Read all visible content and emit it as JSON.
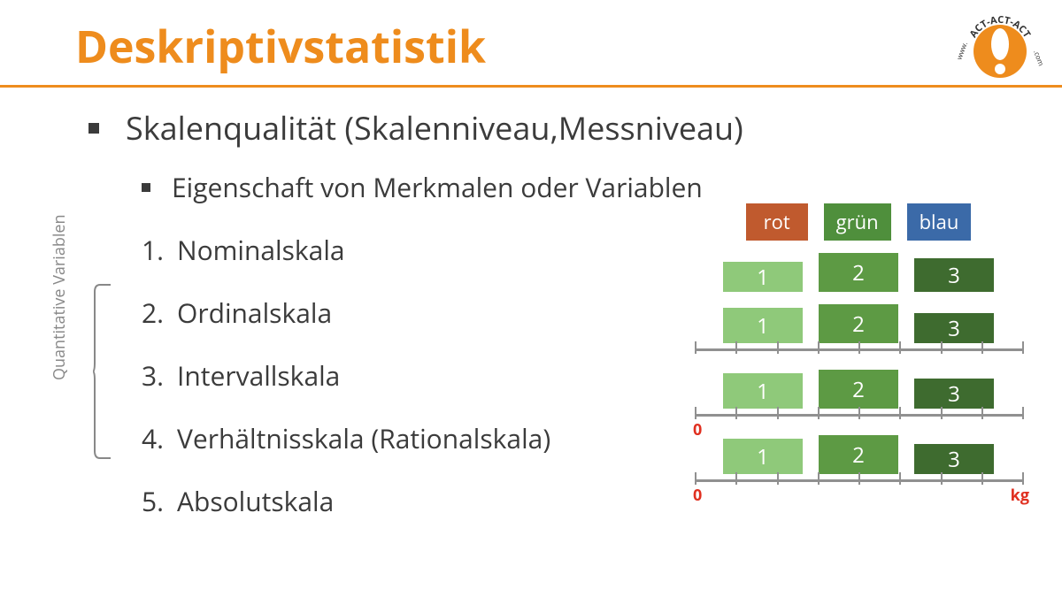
{
  "title": {
    "text": "Deskriptivstatistik",
    "color": "#ee8c1d",
    "fontsize": 50
  },
  "hr_color": "#ee8c1d",
  "logo": {
    "circle_fill": "#ee8c1d",
    "bang_fill": "#ffffff",
    "ring_text_top": "ACT-ACT-ACT",
    "ring_text_left": "www.",
    "ring_text_right": ".com",
    "ring_text_color": "#333333"
  },
  "main_bullet": "Skalenqualität (Skalenniveau,Messniveau)",
  "sub_bullet": "Eigenschaft von Merkmalen oder Variablen",
  "items": [
    {
      "n": "1.",
      "t": "Nominalskala"
    },
    {
      "n": "2.",
      "t": "Ordinalskala"
    },
    {
      "n": "3.",
      "t": "Intervallskala"
    },
    {
      "n": "4.",
      "t": "Verhältnisskala (Rationalskala)"
    },
    {
      "n": "5.",
      "t": "Absolutskala"
    }
  ],
  "side_label": "Quantitative Variablen",
  "bracket": {
    "color": "#888888",
    "width": 2
  },
  "diagram": {
    "nominal_tags": [
      {
        "label": "rot",
        "bg": "#c05a2e"
      },
      {
        "label": "grün",
        "bg": "#4f8f3c"
      },
      {
        "label": "blau",
        "bg": "#3b6aa8"
      }
    ],
    "box_colors": {
      "c1": "#8fc97a",
      "c2": "#5d9a44",
      "c3": "#3e6b2f"
    },
    "box_labels": [
      "1",
      "2",
      "3"
    ],
    "rows": [
      {
        "type": "ordinal",
        "heights": [
          34,
          44,
          38
        ],
        "axis": false
      },
      {
        "type": "interval",
        "heights": [
          40,
          44,
          34
        ],
        "axis": true,
        "zero": false,
        "unit": null
      },
      {
        "type": "ratio",
        "heights": [
          40,
          44,
          34
        ],
        "axis": true,
        "zero": true,
        "unit": null
      },
      {
        "type": "absolute",
        "heights": [
          40,
          44,
          34
        ],
        "axis": true,
        "zero": true,
        "unit": "kg"
      }
    ],
    "axis_color": "#909090",
    "tick_count": 8,
    "zero_color": "#e03020",
    "zero_label": "0",
    "unit_color": "#e03020"
  }
}
